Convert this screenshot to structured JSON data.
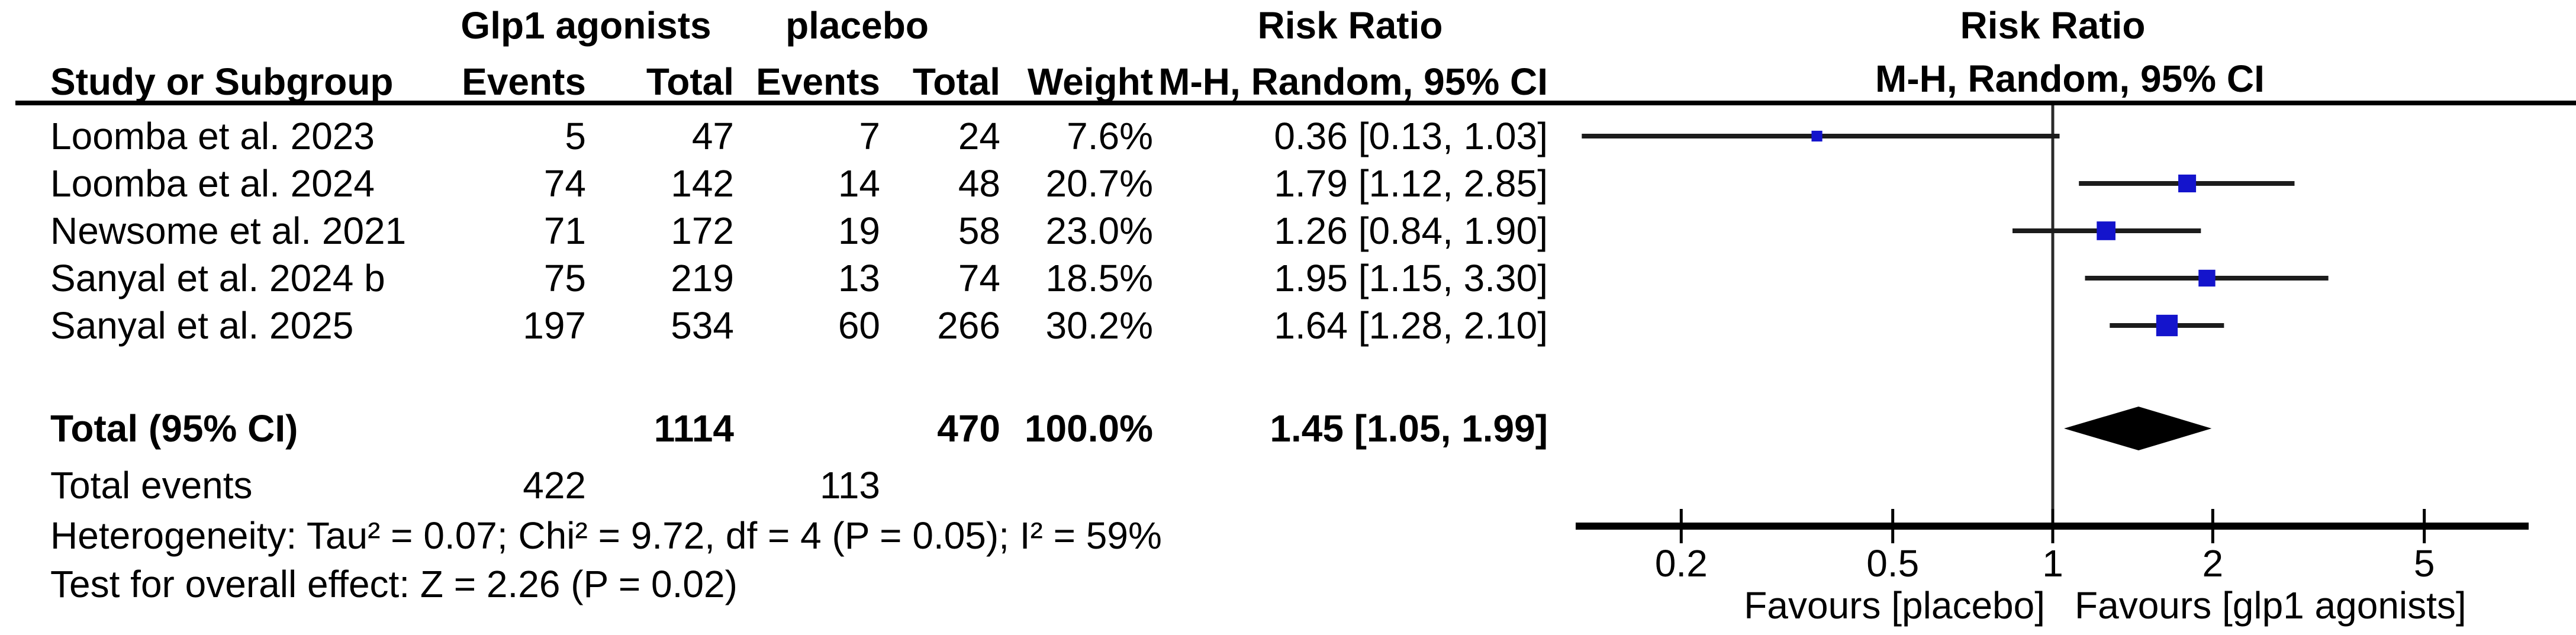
{
  "figure": {
    "group1_label": "Glp1 agonists",
    "group2_label": "placebo",
    "effect_title": "Risk Ratio",
    "effect_subtitle": "M-H, Random, 95% CI",
    "columns": {
      "study": "Study or Subgroup",
      "events": "Events",
      "total": "Total",
      "weight": "Weight",
      "ci_text": "M-H, Random, 95% CI"
    }
  },
  "studies": [
    {
      "name": "Loomba et al. 2023",
      "events1": "5",
      "total1": "47",
      "events2": "7",
      "total2": "24",
      "weight": "7.6%",
      "ci_text": "0.36 [0.13, 1.03]"
    },
    {
      "name": "Loomba et al. 2024",
      "events1": "74",
      "total1": "142",
      "events2": "14",
      "total2": "48",
      "weight": "20.7%",
      "ci_text": "1.79 [1.12, 2.85]"
    },
    {
      "name": "Newsome et al. 2021",
      "events1": "71",
      "total1": "172",
      "events2": "19",
      "total2": "58",
      "weight": "23.0%",
      "ci_text": "1.26 [0.84, 1.90]"
    },
    {
      "name": "Sanyal et al. 2024 b",
      "events1": "75",
      "total1": "219",
      "events2": "13",
      "total2": "74",
      "weight": "18.5%",
      "ci_text": "1.95 [1.15, 3.30]"
    },
    {
      "name": "Sanyal et al. 2025",
      "events1": "197",
      "total1": "534",
      "events2": "60",
      "total2": "266",
      "weight": "30.2%",
      "ci_text": "1.64 [1.28, 2.10]"
    }
  ],
  "total_row": {
    "label": "Total (95% CI)",
    "total1": "1114",
    "total2": "470",
    "weight": "100.0%",
    "ci_text": "1.45 [1.05, 1.99]"
  },
  "total_events_row": {
    "label": "Total events",
    "events1": "422",
    "events2": "113"
  },
  "footnotes": {
    "heterogeneity": "Heterogeneity: Tau² = 0.07; Chi² = 9.72, df = 4 (P = 0.05); I² = 59%",
    "overall_effect": "Test for overall effect: Z = 2.26 (P = 0.02)"
  },
  "axis": {
    "tick_labels": [
      "0.2",
      "0.5",
      "1",
      "2",
      "5"
    ],
    "favours_left": "Favours [placebo]",
    "favours_right": "Favours [glp1 agonists]"
  },
  "colors": {
    "marker_blue": "#1414CC",
    "ci_line": "#1c1c1c",
    "diamond": "#000000",
    "axis": "#000000",
    "null_line": "#2a2a2a"
  },
  "chart_data": {
    "type": "scatter",
    "subtype": "forest_plot",
    "title": "Risk Ratio",
    "method": "M-H, Random, 95% CI",
    "x_scale": "log10",
    "x_ticks": [
      0.2,
      0.5,
      1,
      2,
      5
    ],
    "x_axis_range": [
      0.12,
      7.9
    ],
    "null_value": 1,
    "xlabel_left": "Favours [placebo]",
    "xlabel_right": "Favours [glp1 agonists]",
    "points": [
      {
        "label": "Loomba et al. 2023",
        "rr": 0.36,
        "ci": [
          0.13,
          1.03
        ],
        "weight_pct": 7.6
      },
      {
        "label": "Loomba et al. 2024",
        "rr": 1.79,
        "ci": [
          1.12,
          2.85
        ],
        "weight_pct": 20.7
      },
      {
        "label": "Newsome et al. 2021",
        "rr": 1.26,
        "ci": [
          0.84,
          1.9
        ],
        "weight_pct": 23.0
      },
      {
        "label": "Sanyal et al. 2024 b",
        "rr": 1.95,
        "ci": [
          1.15,
          3.3
        ],
        "weight_pct": 18.5
      },
      {
        "label": "Sanyal et al. 2025",
        "rr": 1.64,
        "ci": [
          1.28,
          2.1
        ],
        "weight_pct": 30.2
      }
    ],
    "summary": {
      "label": "Total (95% CI)",
      "rr": 1.45,
      "ci": [
        1.05,
        1.99
      ]
    },
    "heterogeneity": {
      "tau2": 0.07,
      "chi2": 9.72,
      "df": 4,
      "p": 0.05,
      "i2_pct": 59
    },
    "overall_effect": {
      "z": 2.26,
      "p": 0.02
    }
  }
}
